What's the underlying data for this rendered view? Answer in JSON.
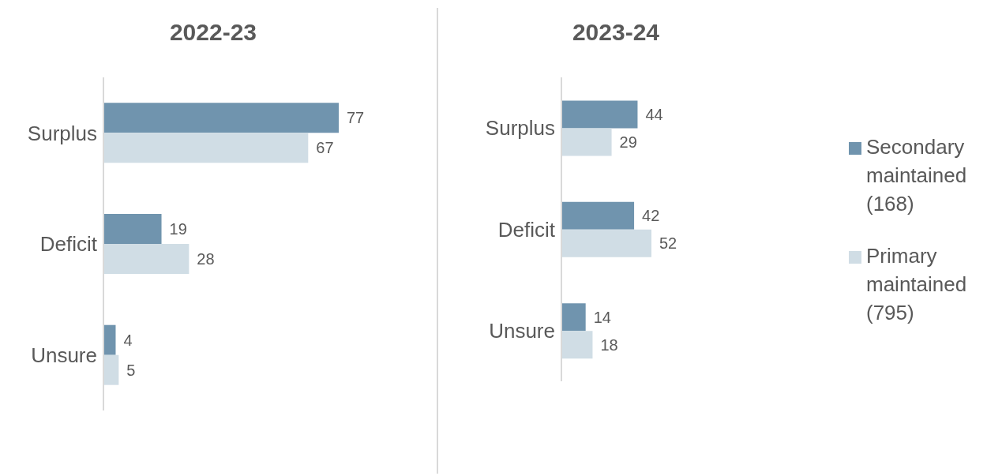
{
  "chart_data": [
    {
      "type": "bar",
      "orientation": "horizontal",
      "title": "2022-23",
      "categories": [
        "Surplus",
        "Deficit",
        "Unsure"
      ],
      "data_labels": true,
      "series": [
        {
          "color": "#7094ae",
          "values": [
            77,
            19,
            4
          ]
        },
        {
          "color": "#d0dde5",
          "values": [
            67,
            28,
            5
          ]
        }
      ]
    },
    {
      "type": "bar",
      "orientation": "horizontal",
      "title": "2023-24",
      "categories": [
        "Surplus",
        "Deficit",
        "Unsure"
      ],
      "data_labels": true,
      "legend": "right",
      "series": [
        {
          "name": "Secondary maintained (168)",
          "color": "#7094ae",
          "values": [
            44,
            42,
            14
          ]
        },
        {
          "name": "Primary maintained (795)",
          "color": "#d0dde5",
          "values": [
            29,
            52,
            18
          ]
        }
      ]
    }
  ]
}
